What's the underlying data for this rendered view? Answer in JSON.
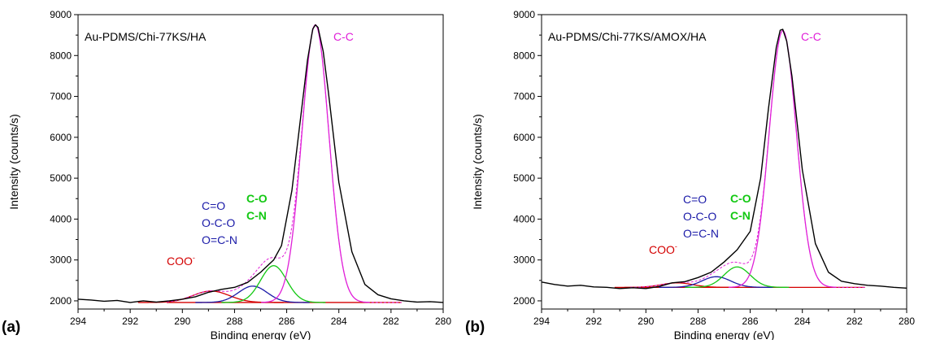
{
  "chart_data": [
    {
      "type": "line",
      "panel_label": "(a)",
      "sample": "Au-PDMS/Chi-77KS/HA",
      "xlabel": "Binding energy (eV)",
      "ylabel": "Intensity (counts/s)",
      "xlim": [
        294,
        280
      ],
      "ylim": [
        1800,
        9000
      ],
      "x_ticks": [
        294,
        292,
        290,
        288,
        286,
        284,
        282,
        280
      ],
      "y_ticks": [
        2000,
        3000,
        4000,
        5000,
        6000,
        7000,
        8000,
        9000
      ],
      "background": 1960,
      "envelope_color": "#000000",
      "raw_data": {
        "x": [
          294.0,
          293.5,
          293.0,
          292.5,
          292.0,
          291.5,
          291.0,
          290.5,
          290.0,
          289.5,
          289.0,
          288.5,
          288.0,
          287.5,
          287.0,
          286.5,
          286.2,
          285.8,
          285.5,
          285.2,
          285.0,
          284.9,
          284.8,
          284.6,
          284.4,
          284.0,
          283.5,
          283.0,
          282.5,
          282.0,
          281.5,
          281.0,
          280.5,
          280.0
        ],
        "y": [
          2040,
          2020,
          1990,
          2010,
          1960,
          2000,
          1970,
          2000,
          2040,
          2100,
          2210,
          2280,
          2330,
          2450,
          2700,
          3000,
          3350,
          4700,
          6300,
          7900,
          8650,
          8750,
          8690,
          8100,
          7100,
          4900,
          3200,
          2400,
          2150,
          2050,
          2000,
          1970,
          1980,
          1960
        ]
      },
      "components": [
        {
          "label": "COO-",
          "color": "#d40000",
          "center": 288.9,
          "amplitude": 280,
          "sigma": 0.7
        },
        {
          "label": "C=O O-C-O O=C-N",
          "color": "#1a1aa8",
          "center": 287.3,
          "amplitude": 400,
          "sigma": 0.55
        },
        {
          "label": "C-O C-N",
          "color": "#12c812",
          "center": 286.5,
          "amplitude": 900,
          "sigma": 0.5
        },
        {
          "label": "C-C",
          "color": "#e020d8",
          "center": 284.9,
          "amplitude": 6790,
          "sigma": 0.52
        }
      ],
      "annotations": {
        "coo": "COO",
        "coo_sup": "-",
        "c_double_o": "C=O",
        "o_c_o": "O-C-O",
        "o_double_c_n": "O=C-N",
        "c_o": "C-O",
        "c_n": "C-N",
        "c_c": "C-C"
      }
    },
    {
      "type": "line",
      "panel_label": "(b)",
      "sample": "Au-PDMS/Chi-77KS/AMOX/HA",
      "xlabel": "Binding energy (eV)",
      "ylabel": "Intensity (counts/s)",
      "xlim": [
        294,
        280
      ],
      "ylim": [
        1800,
        9000
      ],
      "x_ticks": [
        294,
        292,
        290,
        288,
        286,
        284,
        282,
        280
      ],
      "y_ticks": [
        2000,
        3000,
        4000,
        5000,
        6000,
        7000,
        8000,
        9000
      ],
      "background": 2330,
      "envelope_color": "#000000",
      "raw_data": {
        "x": [
          294.0,
          293.5,
          293.0,
          292.5,
          292.0,
          291.5,
          291.0,
          290.5,
          290.0,
          289.5,
          289.0,
          288.5,
          288.0,
          287.5,
          287.0,
          286.5,
          286.0,
          285.6,
          285.3,
          285.0,
          284.85,
          284.75,
          284.6,
          284.4,
          284.0,
          283.5,
          283.0,
          282.5,
          282.0,
          281.5,
          281.0,
          280.5,
          280.0
        ],
        "y": [
          2460,
          2400,
          2360,
          2380,
          2340,
          2330,
          2300,
          2320,
          2300,
          2350,
          2440,
          2470,
          2570,
          2700,
          2950,
          3250,
          3700,
          5000,
          6700,
          8200,
          8620,
          8640,
          8350,
          7500,
          5200,
          3400,
          2700,
          2480,
          2420,
          2380,
          2360,
          2330,
          2310
        ]
      },
      "components": [
        {
          "label": "COO-",
          "color": "#d40000",
          "center": 288.8,
          "amplitude": 110,
          "sigma": 0.6
        },
        {
          "label": "C=O O-C-O O=C-N",
          "color": "#1a1aa8",
          "center": 287.3,
          "amplitude": 260,
          "sigma": 0.55
        },
        {
          "label": "C-O C-N",
          "color": "#12c812",
          "center": 286.5,
          "amplitude": 500,
          "sigma": 0.5
        },
        {
          "label": "C-C",
          "color": "#e020d8",
          "center": 284.75,
          "amplitude": 6280,
          "sigma": 0.52
        }
      ],
      "annotations": {
        "coo": "COO",
        "coo_sup": "-",
        "c_double_o": "C=O",
        "o_c_o": "O-C-O",
        "o_double_c_n": "O=C-N",
        "c_o": "C-O",
        "c_n": "C-N",
        "c_c": "C-C"
      }
    }
  ]
}
